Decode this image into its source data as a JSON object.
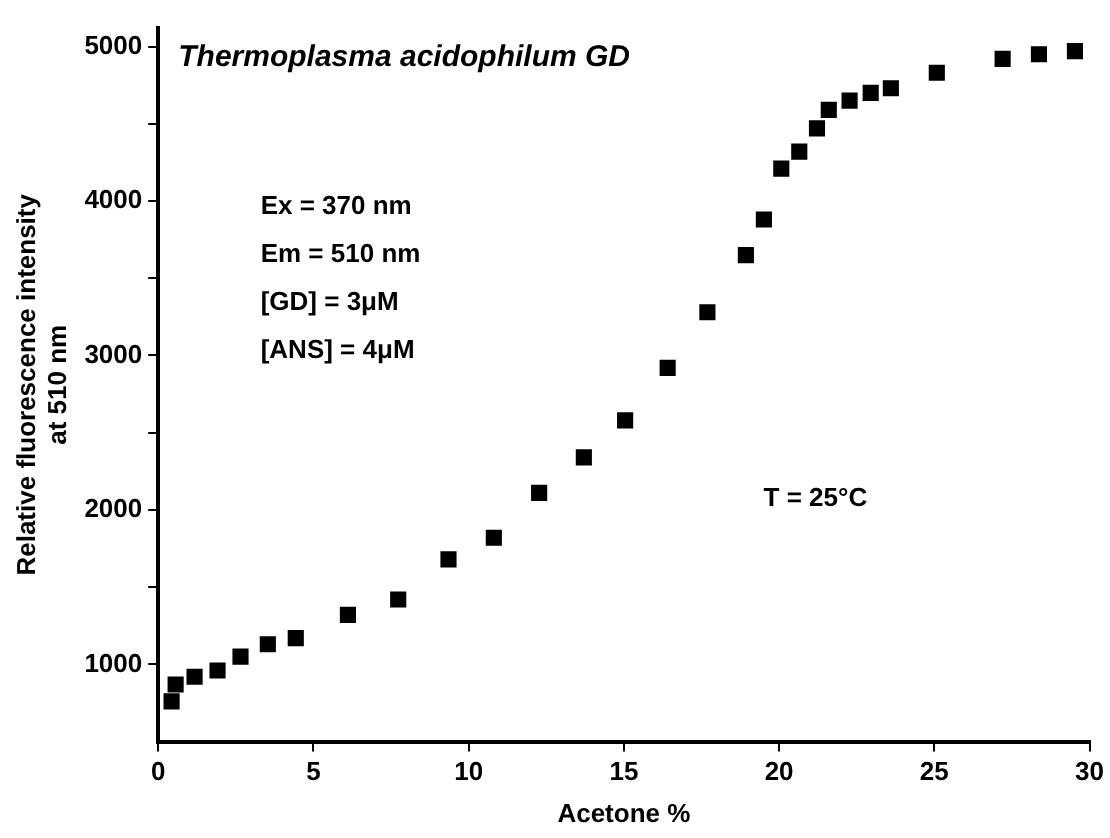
{
  "chart_data": {
    "type": "scatter",
    "title": "Thermoplasma acidophilum GD",
    "xlabel": "Acetone %",
    "ylabel": "Relative fluorescence intensity\nat 510 nm",
    "annotations": [
      "Ex = 370 nm",
      "Em = 510 nm",
      "[GD] = 3μM",
      "[ANS] = 4μM",
      "T = 25°C"
    ],
    "x": [
      0.43,
      0.56,
      1.17,
      1.91,
      2.65,
      3.53,
      4.43,
      6.11,
      7.73,
      9.35,
      10.81,
      12.27,
      13.71,
      15.04,
      16.41,
      17.69,
      18.93,
      19.51,
      20.07,
      20.65,
      21.22,
      21.6,
      22.27,
      22.95,
      23.6,
      25.08,
      27.2,
      28.37,
      29.53
    ],
    "series": [
      {
        "color": "#000000",
        "values": [
          760,
          870,
          920,
          960,
          1050,
          1130,
          1170,
          1320,
          1420,
          1680,
          1820,
          2110,
          2340,
          2580,
          2920,
          3280,
          3650,
          3880,
          4210,
          4320,
          4470,
          4590,
          4650,
          4700,
          4730,
          4830,
          4920,
          4950,
          4970
        ]
      }
    ],
    "marker": "square",
    "xlim": [
      0,
      30
    ],
    "xticks": [
      0,
      5,
      10,
      15,
      20,
      25,
      30
    ],
    "ylim": [
      500,
      5120
    ],
    "yticks": [
      1000,
      {
        "value": 1500,
        "label": null
      },
      2000,
      {
        "value": 2500,
        "label": null
      },
      3000,
      {
        "value": 3500,
        "label": null
      },
      4000,
      {
        "value": 4500,
        "label": null
      },
      5000
    ],
    "grid": false,
    "legend": false
  }
}
